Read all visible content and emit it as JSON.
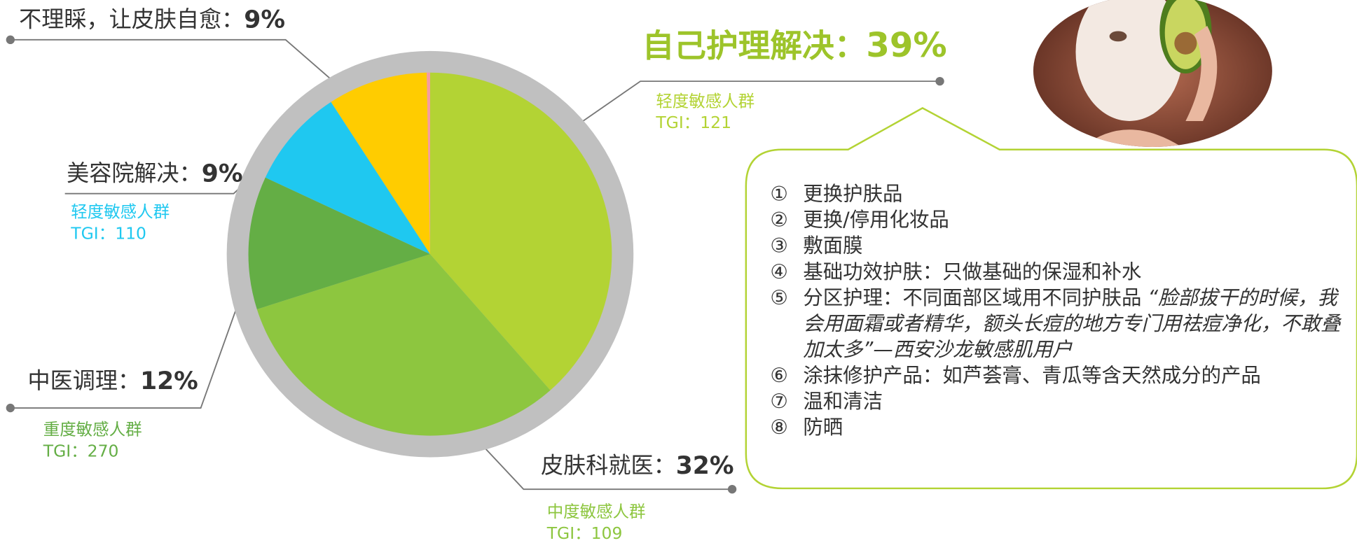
{
  "chart_data": {
    "type": "pie",
    "categories": [
      "自己护理解决：",
      "皮肤科就医：",
      "中医调理：",
      "美容院解决：",
      "不理睬，让皮肤自愈：",
      null
    ],
    "values": [
      39,
      32,
      12,
      9,
      9,
      0.3
    ],
    "value_labels": [
      "39%",
      "32%",
      "12%",
      "9%",
      "9%",
      null
    ],
    "colors": [
      "#b3d334",
      "#8dc63f",
      "#64ae45",
      "#1fc8f0",
      "#ffcc00",
      "#f59ca0"
    ],
    "annotations": [
      {
        "group": "轻度敏感人群",
        "tgi": "TGI：121"
      },
      {
        "group": "中度敏感人群",
        "tgi": "TGI：109"
      },
      {
        "group": "重度敏感人群",
        "tgi": "TGI：270"
      },
      {
        "group": "轻度敏感人群",
        "tgi": "TGI：110"
      }
    ]
  },
  "callout": {
    "items": [
      {
        "marker": "①",
        "text": "更换护肤品"
      },
      {
        "marker": "②",
        "text": "更换/停用化妆品"
      },
      {
        "marker": "③",
        "text": "敷面膜"
      },
      {
        "marker": "④",
        "text": "基础功效护肤：只做基础的保湿和补水"
      },
      {
        "marker": "⑤",
        "text": "分区护理：不同面部区域用不同护肤品",
        "quote": "“脸部拔干的时候，我会用面霜或者精华，额头长痘的地方专门用祛痘净化，不敢叠加太多”—西安沙龙敏感肌用户"
      },
      {
        "marker": "⑥",
        "text": "涂抹修护产品：如芦荟膏、青瓜等含天然成分的产品"
      },
      {
        "marker": "⑦",
        "text": "温和清洁"
      },
      {
        "marker": "⑧",
        "text": "防晒"
      }
    ]
  }
}
